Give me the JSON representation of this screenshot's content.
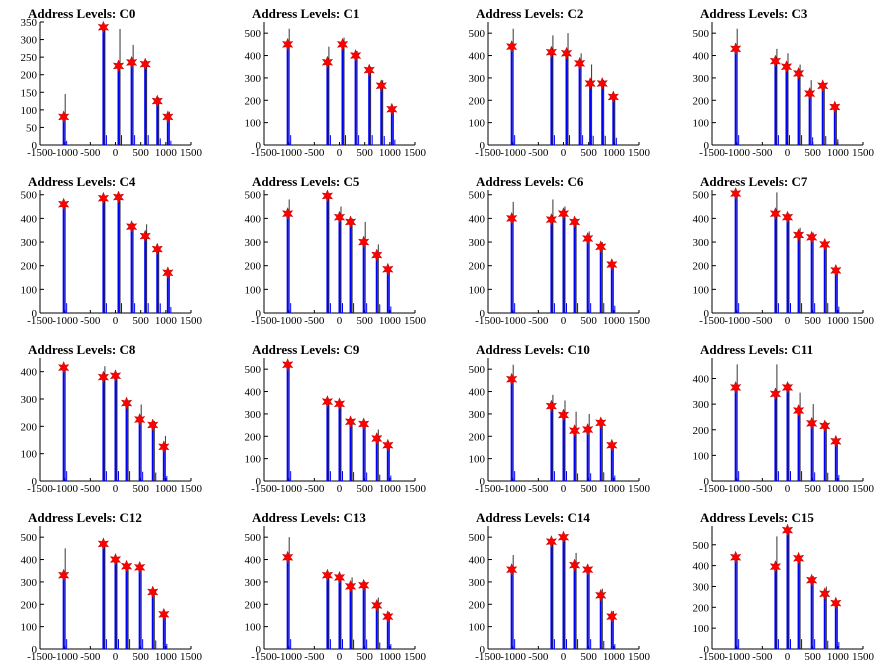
{
  "title_prefix": "Address Levels: ",
  "colors": {
    "bar": "#0000ff",
    "spike": "#000000",
    "marker": "#ff0000",
    "axis": "#000000"
  },
  "chart_data": [
    {
      "type": "bar",
      "title": "Address Levels: C0",
      "xlim": [
        -1500,
        1500
      ],
      "ylim": [
        0,
        350
      ],
      "yticks": [
        0,
        50,
        100,
        150,
        200,
        250,
        300,
        350
      ],
      "xticks": [
        -1500,
        -1000,
        -500,
        0,
        500,
        1000,
        1500
      ],
      "peaks": [
        {
          "x": -1030,
          "y": 80,
          "spike": 145
        },
        {
          "x": -240,
          "y": 335,
          "spike": 335
        },
        {
          "x": 60,
          "y": 225,
          "spike": 330
        },
        {
          "x": 320,
          "y": 235,
          "spike": 285
        },
        {
          "x": 590,
          "y": 230,
          "spike": 240
        },
        {
          "x": 830,
          "y": 125,
          "spike": 135
        },
        {
          "x": 1040,
          "y": 80,
          "spike": 95
        }
      ]
    },
    {
      "type": "bar",
      "title": "Address Levels: C1",
      "xlim": [
        -1500,
        1500
      ],
      "ylim": [
        0,
        550
      ],
      "yticks": [
        0,
        100,
        200,
        300,
        400,
        500
      ],
      "xticks": [
        -1500,
        -1000,
        -500,
        0,
        500,
        1000,
        1500
      ],
      "peaks": [
        {
          "x": -1030,
          "y": 450,
          "spike": 520
        },
        {
          "x": -240,
          "y": 370,
          "spike": 440
        },
        {
          "x": 60,
          "y": 450,
          "spike": 480
        },
        {
          "x": 320,
          "y": 400,
          "spike": 420
        },
        {
          "x": 590,
          "y": 335,
          "spike": 350
        },
        {
          "x": 830,
          "y": 265,
          "spike": 290
        },
        {
          "x": 1040,
          "y": 160,
          "spike": 165
        }
      ]
    },
    {
      "type": "bar",
      "title": "Address Levels: C2",
      "xlim": [
        -1500,
        1500
      ],
      "ylim": [
        0,
        550
      ],
      "yticks": [
        0,
        100,
        200,
        300,
        400,
        500
      ],
      "xticks": [
        -1500,
        -1000,
        -500,
        0,
        500,
        1000,
        1500
      ],
      "peaks": [
        {
          "x": -1030,
          "y": 440,
          "spike": 520
        },
        {
          "x": -240,
          "y": 415,
          "spike": 490
        },
        {
          "x": 60,
          "y": 410,
          "spike": 500
        },
        {
          "x": 320,
          "y": 365,
          "spike": 410
        },
        {
          "x": 530,
          "y": 275,
          "spike": 360
        },
        {
          "x": 770,
          "y": 275,
          "spike": 290
        },
        {
          "x": 990,
          "y": 215,
          "spike": 220
        }
      ]
    },
    {
      "type": "bar",
      "title": "Address Levels: C3",
      "xlim": [
        -1500,
        1500
      ],
      "ylim": [
        0,
        550
      ],
      "yticks": [
        0,
        100,
        200,
        300,
        400,
        500
      ],
      "xticks": [
        -1500,
        -1000,
        -500,
        0,
        500,
        1000,
        1500
      ],
      "peaks": [
        {
          "x": -1030,
          "y": 430,
          "spike": 520
        },
        {
          "x": -240,
          "y": 375,
          "spike": 430
        },
        {
          "x": -20,
          "y": 350,
          "spike": 410
        },
        {
          "x": 220,
          "y": 320,
          "spike": 360
        },
        {
          "x": 440,
          "y": 230,
          "spike": 290
        },
        {
          "x": 700,
          "y": 265,
          "spike": 270
        },
        {
          "x": 940,
          "y": 170,
          "spike": 175
        }
      ]
    },
    {
      "type": "bar",
      "title": "Address Levels: C4",
      "xlim": [
        -1500,
        1500
      ],
      "ylim": [
        0,
        520
      ],
      "yticks": [
        0,
        100,
        200,
        300,
        400,
        500
      ],
      "xticks": [
        -1500,
        -1000,
        -500,
        0,
        500,
        1000,
        1500
      ],
      "peaks": [
        {
          "x": -1030,
          "y": 460,
          "spike": 460
        },
        {
          "x": -240,
          "y": 485,
          "spike": 490
        },
        {
          "x": 60,
          "y": 490,
          "spike": 500
        },
        {
          "x": 320,
          "y": 365,
          "spike": 380
        },
        {
          "x": 590,
          "y": 325,
          "spike": 375
        },
        {
          "x": 830,
          "y": 270,
          "spike": 275
        },
        {
          "x": 1040,
          "y": 170,
          "spike": 175
        }
      ]
    },
    {
      "type": "bar",
      "title": "Address Levels: C5",
      "xlim": [
        -1500,
        1500
      ],
      "ylim": [
        0,
        520
      ],
      "yticks": [
        0,
        100,
        200,
        300,
        400,
        500
      ],
      "xticks": [
        -1500,
        -1000,
        -500,
        0,
        500,
        1000,
        1500
      ],
      "peaks": [
        {
          "x": -1030,
          "y": 420,
          "spike": 480
        },
        {
          "x": -240,
          "y": 495,
          "spike": 500
        },
        {
          "x": 0,
          "y": 405,
          "spike": 450
        },
        {
          "x": 220,
          "y": 385,
          "spike": 400
        },
        {
          "x": 480,
          "y": 300,
          "spike": 385
        },
        {
          "x": 740,
          "y": 245,
          "spike": 290
        },
        {
          "x": 960,
          "y": 185,
          "spike": 190
        }
      ]
    },
    {
      "type": "bar",
      "title": "Address Levels: C6",
      "xlim": [
        -1500,
        1500
      ],
      "ylim": [
        0,
        520
      ],
      "yticks": [
        0,
        100,
        200,
        300,
        400,
        500
      ],
      "xticks": [
        -1500,
        -1000,
        -500,
        0,
        500,
        1000,
        1500
      ],
      "peaks": [
        {
          "x": -1030,
          "y": 400,
          "spike": 470
        },
        {
          "x": -240,
          "y": 395,
          "spike": 480
        },
        {
          "x": 0,
          "y": 420,
          "spike": 450
        },
        {
          "x": 220,
          "y": 385,
          "spike": 400
        },
        {
          "x": 480,
          "y": 315,
          "spike": 345
        },
        {
          "x": 740,
          "y": 280,
          "spike": 300
        },
        {
          "x": 960,
          "y": 205,
          "spike": 210
        }
      ]
    },
    {
      "type": "bar",
      "title": "Address Levels: C7",
      "xlim": [
        -1500,
        1500
      ],
      "ylim": [
        0,
        520
      ],
      "yticks": [
        0,
        100,
        200,
        300,
        400,
        500
      ],
      "xticks": [
        -1500,
        -1000,
        -500,
        0,
        500,
        1000,
        1500
      ],
      "peaks": [
        {
          "x": -1030,
          "y": 505,
          "spike": 510
        },
        {
          "x": -240,
          "y": 420,
          "spike": 510
        },
        {
          "x": 0,
          "y": 405,
          "spike": 420
        },
        {
          "x": 220,
          "y": 330,
          "spike": 360
        },
        {
          "x": 480,
          "y": 320,
          "spike": 340
        },
        {
          "x": 740,
          "y": 290,
          "spike": 300
        },
        {
          "x": 960,
          "y": 180,
          "spike": 185
        }
      ]
    },
    {
      "type": "bar",
      "title": "Address Levels: C8",
      "xlim": [
        -1500,
        1500
      ],
      "ylim": [
        0,
        450
      ],
      "yticks": [
        0,
        100,
        200,
        300,
        400
      ],
      "xticks": [
        -1500,
        -1000,
        -500,
        0,
        500,
        1000,
        1500
      ],
      "peaks": [
        {
          "x": -1030,
          "y": 415,
          "spike": 420
        },
        {
          "x": -240,
          "y": 380,
          "spike": 420
        },
        {
          "x": 0,
          "y": 385,
          "spike": 390
        },
        {
          "x": 220,
          "y": 285,
          "spike": 295
        },
        {
          "x": 480,
          "y": 225,
          "spike": 280
        },
        {
          "x": 740,
          "y": 205,
          "spike": 220
        },
        {
          "x": 960,
          "y": 125,
          "spike": 165
        }
      ]
    },
    {
      "type": "bar",
      "title": "Address Levels: C9",
      "xlim": [
        -1500,
        1500
      ],
      "ylim": [
        0,
        550
      ],
      "yticks": [
        0,
        100,
        200,
        300,
        400,
        500
      ],
      "xticks": [
        -1500,
        -1000,
        -500,
        0,
        500,
        1000,
        1500
      ],
      "peaks": [
        {
          "x": -1030,
          "y": 520,
          "spike": 520
        },
        {
          "x": -240,
          "y": 355,
          "spike": 355
        },
        {
          "x": 0,
          "y": 345,
          "spike": 350
        },
        {
          "x": 220,
          "y": 265,
          "spike": 270
        },
        {
          "x": 480,
          "y": 255,
          "spike": 260
        },
        {
          "x": 740,
          "y": 190,
          "spike": 230
        },
        {
          "x": 960,
          "y": 160,
          "spike": 165
        }
      ]
    },
    {
      "type": "bar",
      "title": "Address Levels: C10",
      "xlim": [
        -1500,
        1500
      ],
      "ylim": [
        0,
        550
      ],
      "yticks": [
        0,
        100,
        200,
        300,
        400,
        500
      ],
      "xticks": [
        -1500,
        -1000,
        -500,
        0,
        500,
        1000,
        1500
      ],
      "peaks": [
        {
          "x": -1030,
          "y": 455,
          "spike": 520
        },
        {
          "x": -240,
          "y": 335,
          "spike": 385
        },
        {
          "x": 0,
          "y": 295,
          "spike": 360
        },
        {
          "x": 220,
          "y": 225,
          "spike": 310
        },
        {
          "x": 480,
          "y": 230,
          "spike": 300
        },
        {
          "x": 740,
          "y": 260,
          "spike": 275
        },
        {
          "x": 960,
          "y": 160,
          "spike": 170
        }
      ]
    },
    {
      "type": "bar",
      "title": "Address Levels: C11",
      "xlim": [
        -1500,
        1500
      ],
      "ylim": [
        0,
        480
      ],
      "yticks": [
        0,
        100,
        200,
        300,
        400
      ],
      "xticks": [
        -1500,
        -1000,
        -500,
        0,
        500,
        1000,
        1500
      ],
      "peaks": [
        {
          "x": -1030,
          "y": 365,
          "spike": 455
        },
        {
          "x": -240,
          "y": 340,
          "spike": 455
        },
        {
          "x": 0,
          "y": 365,
          "spike": 380
        },
        {
          "x": 220,
          "y": 275,
          "spike": 345
        },
        {
          "x": 480,
          "y": 225,
          "spike": 300
        },
        {
          "x": 740,
          "y": 215,
          "spike": 230
        },
        {
          "x": 960,
          "y": 155,
          "spike": 160
        }
      ]
    },
    {
      "type": "bar",
      "title": "Address Levels: C12",
      "xlim": [
        -1500,
        1500
      ],
      "ylim": [
        0,
        550
      ],
      "yticks": [
        0,
        100,
        200,
        300,
        400,
        500
      ],
      "xticks": [
        -1500,
        -1000,
        -500,
        0,
        500,
        1000,
        1500
      ],
      "peaks": [
        {
          "x": -1030,
          "y": 330,
          "spike": 450
        },
        {
          "x": -240,
          "y": 470,
          "spike": 470
        },
        {
          "x": 0,
          "y": 400,
          "spike": 410
        },
        {
          "x": 220,
          "y": 370,
          "spike": 380
        },
        {
          "x": 480,
          "y": 365,
          "spike": 365
        },
        {
          "x": 740,
          "y": 255,
          "spike": 260
        },
        {
          "x": 960,
          "y": 155,
          "spike": 160
        }
      ]
    },
    {
      "type": "bar",
      "title": "Address Levels: C13",
      "xlim": [
        -1500,
        1500
      ],
      "ylim": [
        0,
        550
      ],
      "yticks": [
        0,
        100,
        200,
        300,
        400,
        500
      ],
      "xticks": [
        -1500,
        -1000,
        -500,
        0,
        500,
        1000,
        1500
      ],
      "peaks": [
        {
          "x": -1030,
          "y": 410,
          "spike": 500
        },
        {
          "x": -240,
          "y": 330,
          "spike": 340
        },
        {
          "x": 0,
          "y": 320,
          "spike": 330
        },
        {
          "x": 220,
          "y": 280,
          "spike": 320
        },
        {
          "x": 480,
          "y": 285,
          "spike": 300
        },
        {
          "x": 740,
          "y": 195,
          "spike": 230
        },
        {
          "x": 960,
          "y": 145,
          "spike": 165
        }
      ]
    },
    {
      "type": "bar",
      "title": "Address Levels: C14",
      "xlim": [
        -1500,
        1500
      ],
      "ylim": [
        0,
        550
      ],
      "yticks": [
        0,
        100,
        200,
        300,
        400,
        500
      ],
      "xticks": [
        -1500,
        -1000,
        -500,
        0,
        500,
        1000,
        1500
      ],
      "peaks": [
        {
          "x": -1030,
          "y": 355,
          "spike": 420
        },
        {
          "x": -240,
          "y": 480,
          "spike": 490
        },
        {
          "x": 0,
          "y": 500,
          "spike": 505
        },
        {
          "x": 220,
          "y": 375,
          "spike": 430
        },
        {
          "x": 480,
          "y": 355,
          "spike": 365
        },
        {
          "x": 740,
          "y": 240,
          "spike": 270
        },
        {
          "x": 960,
          "y": 145,
          "spike": 170
        }
      ]
    },
    {
      "type": "bar",
      "title": "Address Levels: C15",
      "xlim": [
        -1500,
        1500
      ],
      "ylim": [
        0,
        590
      ],
      "yticks": [
        0,
        100,
        200,
        300,
        400,
        500
      ],
      "xticks": [
        -1500,
        -1000,
        -500,
        0,
        500,
        1000,
        1500
      ],
      "peaks": [
        {
          "x": -1030,
          "y": 440,
          "spike": 450
        },
        {
          "x": -240,
          "y": 395,
          "spike": 540
        },
        {
          "x": 0,
          "y": 570,
          "spike": 570
        },
        {
          "x": 220,
          "y": 435,
          "spike": 440
        },
        {
          "x": 480,
          "y": 330,
          "spike": 350
        },
        {
          "x": 740,
          "y": 265,
          "spike": 300
        },
        {
          "x": 960,
          "y": 220,
          "spike": 230
        }
      ]
    }
  ]
}
